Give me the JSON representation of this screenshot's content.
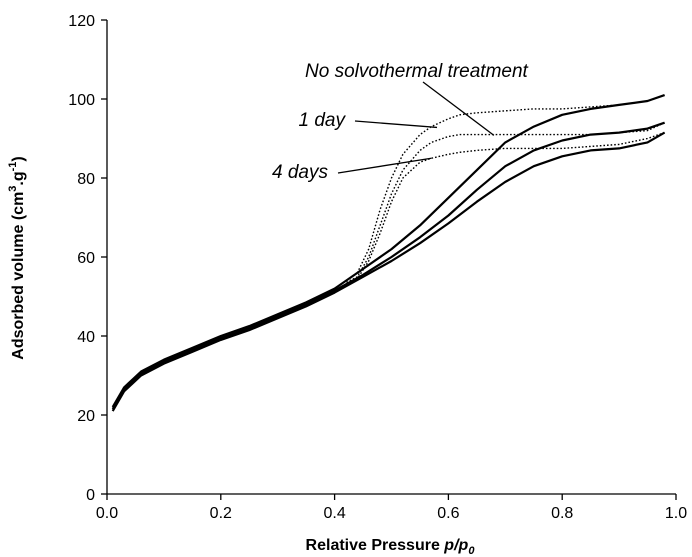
{
  "chart_data": {
    "type": "line",
    "xlabel": "Relative Pressure p/p0",
    "xlabel_parts": {
      "main": "Relative Pressure ",
      "p": "p",
      "slash": "/",
      "p0_base": "p",
      "p0_sub": "0"
    },
    "ylabel": "Adsorbed volume (cm3.g-1)",
    "ylabel_parts": {
      "prefix": "Adsorbed volume (cm",
      "sup3": "3",
      "mid": ".g",
      "supneg1": "-1",
      "suffix": ")"
    },
    "xlim": [
      0.0,
      1.0
    ],
    "ylim": [
      0,
      120
    ],
    "xticks": [
      "0.0",
      "0.2",
      "0.4",
      "0.6",
      "0.8",
      "1.0"
    ],
    "xtick_values": [
      0.0,
      0.2,
      0.4,
      0.6,
      0.8,
      1.0
    ],
    "yticks": [
      "0",
      "20",
      "40",
      "60",
      "80",
      "100",
      "120"
    ],
    "ytick_values": [
      0,
      20,
      40,
      60,
      80,
      100,
      120
    ],
    "grid": false,
    "legend": "none",
    "annotations": [
      {
        "text": "No solvothermal treatment",
        "points_to": "No solvothermal treatment"
      },
      {
        "text": "1 day",
        "points_to": "1 day"
      },
      {
        "text": "4 days",
        "points_to": "4 days"
      }
    ],
    "series": [
      {
        "name": "No solvothermal treatment",
        "adsorption": {
          "x": [
            0.01,
            0.03,
            0.06,
            0.1,
            0.15,
            0.2,
            0.25,
            0.3,
            0.35,
            0.4,
            0.45,
            0.5,
            0.55,
            0.6,
            0.65,
            0.7,
            0.75,
            0.8,
            0.85,
            0.9,
            0.95,
            0.98
          ],
          "y": [
            22,
            27,
            31,
            34,
            37,
            40,
            42.5,
            45.5,
            48.5,
            52,
            57,
            62,
            68,
            75,
            82,
            89,
            93,
            96,
            97.5,
            98.5,
            99.5,
            101
          ]
        },
        "desorption": {
          "x": [
            0.98,
            0.95,
            0.9,
            0.85,
            0.8,
            0.75,
            0.7,
            0.65,
            0.62,
            0.6,
            0.57,
            0.55,
            0.52,
            0.5,
            0.48,
            0.46,
            0.44,
            0.42
          ],
          "y": [
            101,
            99.5,
            98.5,
            98,
            97.5,
            97.5,
            97,
            96.5,
            96,
            95,
            93,
            91,
            86,
            80,
            72,
            62,
            56,
            54
          ]
        }
      },
      {
        "name": "1 day",
        "adsorption": {
          "x": [
            0.01,
            0.03,
            0.06,
            0.1,
            0.15,
            0.2,
            0.25,
            0.3,
            0.35,
            0.4,
            0.45,
            0.5,
            0.55,
            0.6,
            0.65,
            0.7,
            0.75,
            0.8,
            0.85,
            0.9,
            0.95,
            0.98
          ],
          "y": [
            21.5,
            26.5,
            30.5,
            33.5,
            36.5,
            39.5,
            42,
            45,
            48,
            51.5,
            55.5,
            60,
            65,
            70.5,
            77,
            83,
            87,
            89.5,
            91,
            91.5,
            92.5,
            94
          ]
        },
        "desorption": {
          "x": [
            0.98,
            0.95,
            0.9,
            0.85,
            0.8,
            0.75,
            0.7,
            0.65,
            0.62,
            0.6,
            0.57,
            0.55,
            0.52,
            0.5,
            0.48,
            0.46,
            0.44,
            0.42
          ],
          "y": [
            94,
            92,
            91.5,
            91,
            91,
            91,
            91,
            91,
            91,
            90.5,
            89,
            87,
            82,
            76,
            68,
            60,
            55,
            53.5
          ]
        }
      },
      {
        "name": "4 days",
        "adsorption": {
          "x": [
            0.01,
            0.03,
            0.06,
            0.1,
            0.15,
            0.2,
            0.25,
            0.3,
            0.35,
            0.4,
            0.45,
            0.5,
            0.55,
            0.6,
            0.65,
            0.7,
            0.75,
            0.8,
            0.85,
            0.9,
            0.95,
            0.98
          ],
          "y": [
            21,
            26,
            30,
            33,
            36,
            39,
            41.5,
            44.5,
            47.5,
            51,
            55,
            59,
            63.5,
            68.5,
            74,
            79,
            83,
            85.5,
            87,
            87.5,
            89,
            91.5
          ]
        },
        "desorption": {
          "x": [
            0.98,
            0.95,
            0.9,
            0.85,
            0.8,
            0.75,
            0.7,
            0.65,
            0.62,
            0.6,
            0.57,
            0.55,
            0.52,
            0.5,
            0.48,
            0.46,
            0.44,
            0.42
          ],
          "y": [
            91.5,
            90,
            88.5,
            88,
            87.5,
            87.5,
            87.5,
            87,
            86.5,
            86,
            85,
            84,
            80,
            74,
            66,
            59,
            54.5,
            53
          ]
        }
      }
    ]
  }
}
